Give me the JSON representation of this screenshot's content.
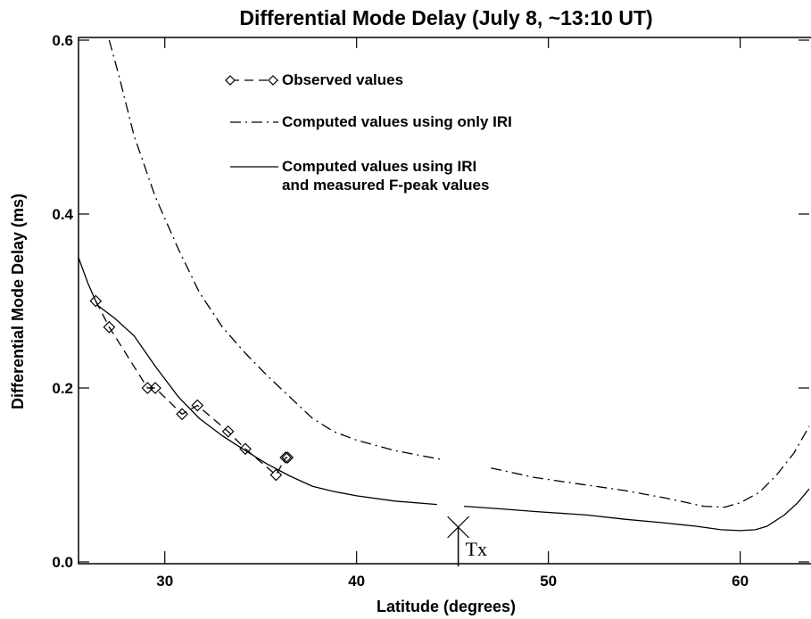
{
  "chart_data": {
    "type": "line",
    "title": "Differential Mode Delay (July 8, ~13:10 UT)",
    "x_label": "Latitude (degrees)",
    "y_label": "Differential Mode Delay (ms)",
    "xlim": [
      25.5,
      63.6
    ],
    "ylim": [
      0,
      0.6
    ],
    "xticks": [
      30,
      40,
      50,
      60
    ],
    "yticks": [
      {
        "value": 0,
        "label": "0.0"
      },
      0.2,
      0.4,
      0.6
    ],
    "series": [
      {
        "name": "Observed values",
        "color": "#000000",
        "line_style": "dashed",
        "marker": "diamond",
        "x": [
          26.4,
          27.1,
          29.1,
          29.5,
          30.9,
          31.7,
          33.3,
          34.2,
          35.8,
          36.3,
          36.4
        ],
        "values": [
          0.3,
          0.27,
          0.2,
          0.2,
          0.17,
          0.18,
          0.15,
          0.13,
          0.1,
          0.12,
          0.12
        ]
      },
      {
        "name": "Computed values using only IRI",
        "color": "#000000",
        "line_style": "dashdot",
        "x": [
          27.1,
          27.6,
          28.4,
          29.5,
          30.7,
          31.8,
          33.0,
          34.2,
          35.3,
          36.5,
          37.7,
          38.8,
          40.0,
          42.0,
          44.4,
          45.6,
          47.0,
          49.3,
          51.5,
          54.0,
          56.0,
          58.1,
          59.2,
          60.0,
          61.0,
          61.9,
          62.8,
          63.6
        ],
        "values": [
          0.6,
          0.56,
          0.49,
          0.42,
          0.36,
          0.31,
          0.27,
          0.24,
          0.215,
          0.19,
          0.165,
          0.15,
          0.14,
          0.128,
          0.118,
          null,
          0.108,
          0.097,
          0.09,
          0.082,
          0.074,
          0.064,
          0.063,
          0.068,
          0.08,
          0.1,
          0.125,
          0.156
        ]
      },
      {
        "name": "Computed values using IRI\nand measured F-peak values",
        "color": "#000000",
        "line_style": "solid",
        "x": [
          25.5,
          26.0,
          26.5,
          27.4,
          28.4,
          29.5,
          30.7,
          31.8,
          33.0,
          34.2,
          35.3,
          36.5,
          37.7,
          38.8,
          40.0,
          42.0,
          44.2,
          45.0,
          45.6,
          47.5,
          49.3,
          52.0,
          54.0,
          56.0,
          57.7,
          59.0,
          60.0,
          60.8,
          61.4,
          62.3,
          63.0,
          63.6
        ],
        "values": [
          0.35,
          0.32,
          0.295,
          0.28,
          0.26,
          0.225,
          0.19,
          0.165,
          0.145,
          0.128,
          0.113,
          0.099,
          0.087,
          0.081,
          0.076,
          0.07,
          0.066,
          null,
          0.064,
          0.061,
          0.058,
          0.054,
          0.049,
          0.045,
          0.041,
          0.037,
          0.036,
          0.037,
          0.041,
          0.054,
          0.068,
          0.084
        ]
      }
    ],
    "annotation": {
      "text": "Tx",
      "x": 45.3,
      "y": 0.04
    }
  }
}
